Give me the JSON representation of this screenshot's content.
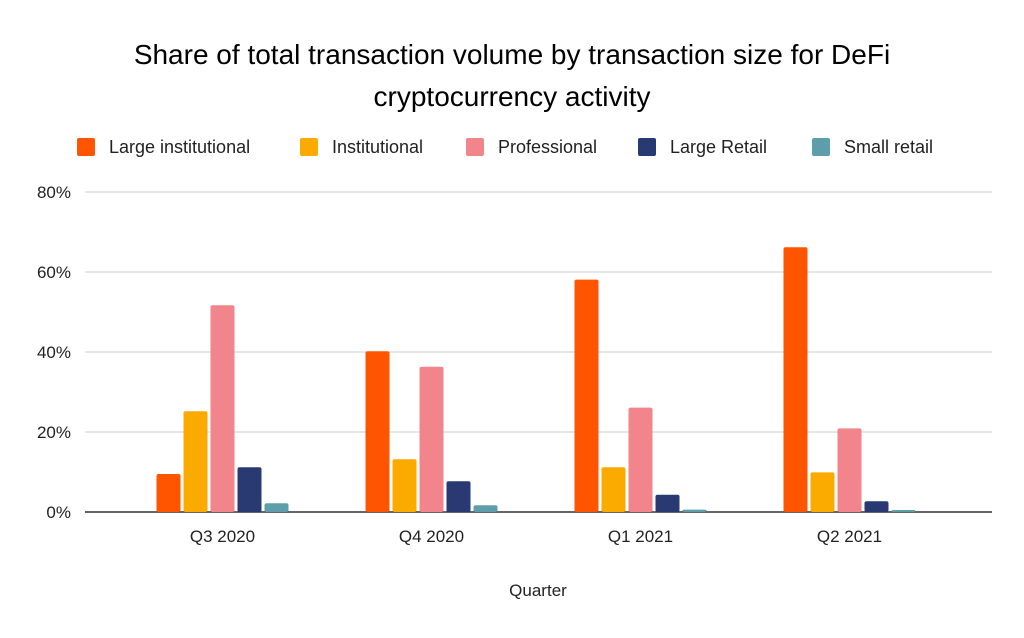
{
  "chart_data": {
    "type": "bar",
    "title_lines": [
      "Share of total transaction volume by transaction size for DeFi",
      "cryptocurrency activity"
    ],
    "xlabel": "Quarter",
    "ylabel": "",
    "ylim": [
      0,
      80
    ],
    "yticks": [
      0,
      20,
      40,
      60,
      80
    ],
    "ytick_labels": [
      "0%",
      "20%",
      "40%",
      "60%",
      "80%"
    ],
    "grid": true,
    "legend_position": "top",
    "categories": [
      "Q3 2020",
      "Q4 2020",
      "Q1 2021",
      "Q2 2021"
    ],
    "series": [
      {
        "name": "Large institutional",
        "color": "#ff5400",
        "values": [
          9.5,
          40.2,
          58.1,
          66.2
        ]
      },
      {
        "name": "Institutional",
        "color": "#fbab00",
        "values": [
          25.2,
          13.2,
          11.2,
          9.9
        ]
      },
      {
        "name": "Professional",
        "color": "#f1858b",
        "values": [
          51.7,
          36.3,
          26.1,
          20.9
        ]
      },
      {
        "name": "Large Retail",
        "color": "#293a73",
        "values": [
          11.2,
          7.7,
          4.3,
          2.7
        ]
      },
      {
        "name": "Small retail",
        "color": "#5e9eaa",
        "values": [
          2.2,
          1.7,
          0.6,
          0.5
        ]
      }
    ]
  }
}
